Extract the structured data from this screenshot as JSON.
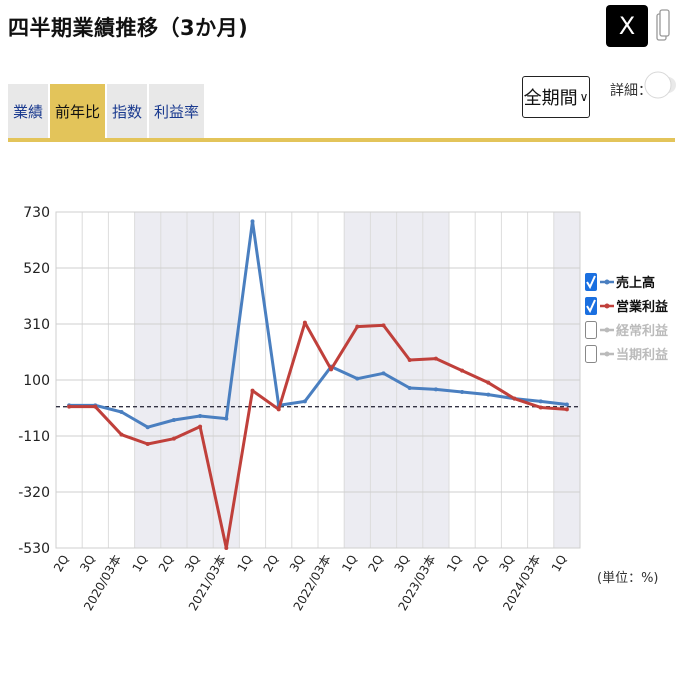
{
  "header": {
    "title": "四半期業績推移（3か月)",
    "x_button_label": "X"
  },
  "tabs": [
    {
      "label": "業績",
      "active": false
    },
    {
      "label": "前年比",
      "active": true
    },
    {
      "label": "指数",
      "active": false
    },
    {
      "label": "利益率",
      "active": false
    }
  ],
  "period_select": {
    "value": "全期間",
    "arrow": "∨"
  },
  "detail_toggle": {
    "label": "詳細：",
    "on": false
  },
  "colors": {
    "accent": "#e3c45a",
    "sales": "#4a7fc0",
    "operating_profit": "#c0403b",
    "disabled": "#bbbbbb",
    "shade": "#ececf2"
  },
  "chart_data": {
    "type": "line",
    "unit_label": "(単位：%)",
    "x_categories": [
      "2Q",
      "3Q",
      "2020/03本",
      "1Q",
      "2Q",
      "3Q",
      "2021/03本",
      "1Q",
      "2Q",
      "3Q",
      "2022/03本",
      "1Q",
      "2Q",
      "3Q",
      "2023/03本",
      "1Q",
      "2Q",
      "3Q",
      "2024/03本",
      "1Q"
    ],
    "y_ticks": [
      730,
      520,
      310,
      100,
      -110,
      -320,
      -530
    ],
    "ylim": [
      -530,
      730
    ],
    "baseline": 0,
    "shaded_category_ranges": [
      [
        3,
        6
      ],
      [
        11,
        14
      ],
      [
        19,
        19
      ]
    ],
    "series": [
      {
        "name": "売上高",
        "checked": true,
        "values": [
          5,
          5,
          -20,
          -77,
          -50,
          -35,
          -45,
          695,
          5,
          20,
          150,
          105,
          125,
          70,
          65,
          55,
          45,
          30,
          20,
          8
        ]
      },
      {
        "name": "営業利益",
        "checked": true,
        "values": [
          0,
          0,
          -105,
          -140,
          -120,
          -75,
          -530,
          60,
          -10,
          315,
          140,
          300,
          305,
          175,
          180,
          135,
          90,
          30,
          -3,
          -10
        ]
      },
      {
        "name": "経常利益",
        "checked": false,
        "values": []
      },
      {
        "name": "当期利益",
        "checked": false,
        "values": []
      }
    ]
  }
}
